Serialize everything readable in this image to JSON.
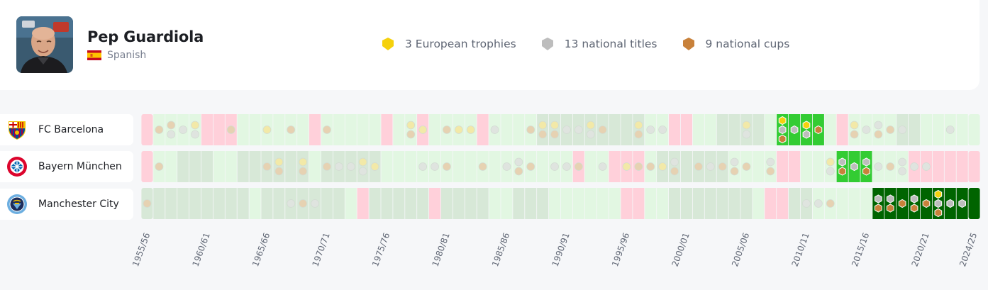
{
  "manager": {
    "name": "Pep Guardiola",
    "nationality": "Spanish",
    "avatar_icon": "manager-portrait",
    "flag_icon": "spain-flag-icon"
  },
  "summary": [
    {
      "label": "3 European trophies",
      "icon": "european-trophy-shield-icon",
      "color": "#f5d10c"
    },
    {
      "label": "13 national titles",
      "icon": "national-title-shield-icon",
      "color": "#bdbdbd"
    },
    {
      "label": "9 national cups",
      "icon": "national-cup-shield-icon",
      "color": "#c8813a"
    }
  ],
  "clubs": [
    {
      "name": "FC Barcelona",
      "logo_icon": "fc-barcelona-crest-icon"
    },
    {
      "name": "Bayern München",
      "logo_icon": "bayern-muenchen-crest-icon"
    },
    {
      "name": "Manchester City",
      "logo_icon": "manchester-city-crest-icon"
    }
  ],
  "seasons": {
    "first": "1955/56",
    "last": "2024/25",
    "tick_labels": [
      "1955/56",
      "1960/61",
      "1965/66",
      "1970/71",
      "1975/76",
      "1980/81",
      "1985/86",
      "1990/91",
      "1995/96",
      "2000/01",
      "2005/06",
      "2010/11",
      "2015/16",
      "2020/21",
      "2024/25"
    ]
  },
  "legend_colors": {
    "managed_light": "#33cc33",
    "managed_dark": "#006400",
    "relegated": "#ffd0da",
    "top_flight": "#e2f7e2",
    "other_manager": "#d7e8d7"
  },
  "tenures": [
    {
      "club": "FC Barcelona",
      "from": "2008/09",
      "to": "2011/12",
      "shade": "light"
    },
    {
      "club": "Bayern München",
      "from": "2013/14",
      "to": "2015/16",
      "shade": "light"
    },
    {
      "club": "Manchester City",
      "from": "2016/17",
      "to": "2024/25",
      "shade": "dark"
    }
  ]
}
